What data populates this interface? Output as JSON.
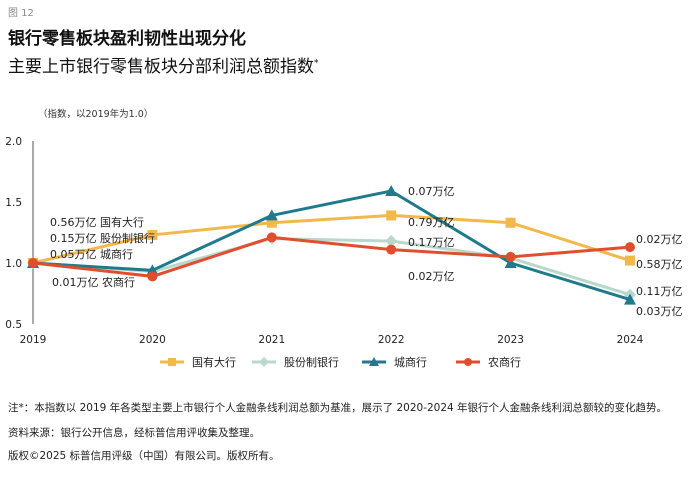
{
  "figure_label": "图 12",
  "headline": "银行零售板块盈利韧性出现分化",
  "chart_data": {
    "type": "line",
    "title": "主要上市银行零售板块分部利润总额指数",
    "title_mark": "*",
    "unit_note": "（指数，以2019年为1.0）",
    "x": [
      "2019",
      "2020",
      "2021",
      "2022",
      "2023",
      "2024"
    ],
    "ylim": [
      0.5,
      2.0
    ],
    "yticks": [
      "0.5",
      "1.0",
      "1.5",
      "2.0"
    ],
    "grid": false,
    "legend_position": "bottom",
    "series": [
      {
        "name": "国有大行",
        "color": "#F2B84B",
        "marker": "square",
        "values": [
          1.0,
          1.23,
          1.33,
          1.39,
          1.33,
          1.02
        ]
      },
      {
        "name": "股份制银行",
        "color": "#B9D8CC",
        "marker": "diamond",
        "values": [
          1.0,
          0.93,
          1.2,
          1.18,
          1.04,
          0.74
        ]
      },
      {
        "name": "城商行",
        "color": "#1F7A8C",
        "marker": "triangle",
        "values": [
          1.0,
          0.94,
          1.39,
          1.59,
          1.0,
          0.7
        ]
      },
      {
        "name": "农商行",
        "color": "#E04E2D",
        "marker": "circle",
        "values": [
          1.0,
          0.89,
          1.21,
          1.11,
          1.05,
          1.13
        ]
      }
    ],
    "annotations": [
      {
        "text": "0.56万亿  国有大行",
        "series": "国有大行",
        "xi": 0
      },
      {
        "text": "0.15万亿  股份制银行",
        "series": "股份制银行",
        "xi": 0
      },
      {
        "text": "0.05万亿  城商行",
        "series": "城商行",
        "xi": 0
      },
      {
        "text": "0.01万亿  农商行",
        "series": "农商行",
        "xi": 0
      },
      {
        "text": "0.07万亿",
        "series": "城商行",
        "xi": 3
      },
      {
        "text": "0.79万亿",
        "series": "国有大行",
        "xi": 3
      },
      {
        "text": "0.17万亿",
        "series": "股份制银行",
        "xi": 3
      },
      {
        "text": "0.02万亿",
        "series": "农商行",
        "xi": 3
      },
      {
        "text": "0.02万亿",
        "series": "农商行",
        "xi": 5
      },
      {
        "text": "0.58万亿",
        "series": "国有大行",
        "xi": 5
      },
      {
        "text": "0.11万亿",
        "series": "股份制银行",
        "xi": 5
      },
      {
        "text": "0.03万亿",
        "series": "城商行",
        "xi": 5
      }
    ]
  },
  "footnotes": {
    "note": "注*：本指数以 2019 年各类型主要上市银行个人金融条线利润总额为基准，展示了 2020-2024 年银行个人金融条线利润总额较的变化趋势。",
    "source": "资料来源：银行公开信息，经标普信用评收集及整理。",
    "copyright": "版权©2025 标普信用评级（中国）有限公司。版权所有。"
  }
}
